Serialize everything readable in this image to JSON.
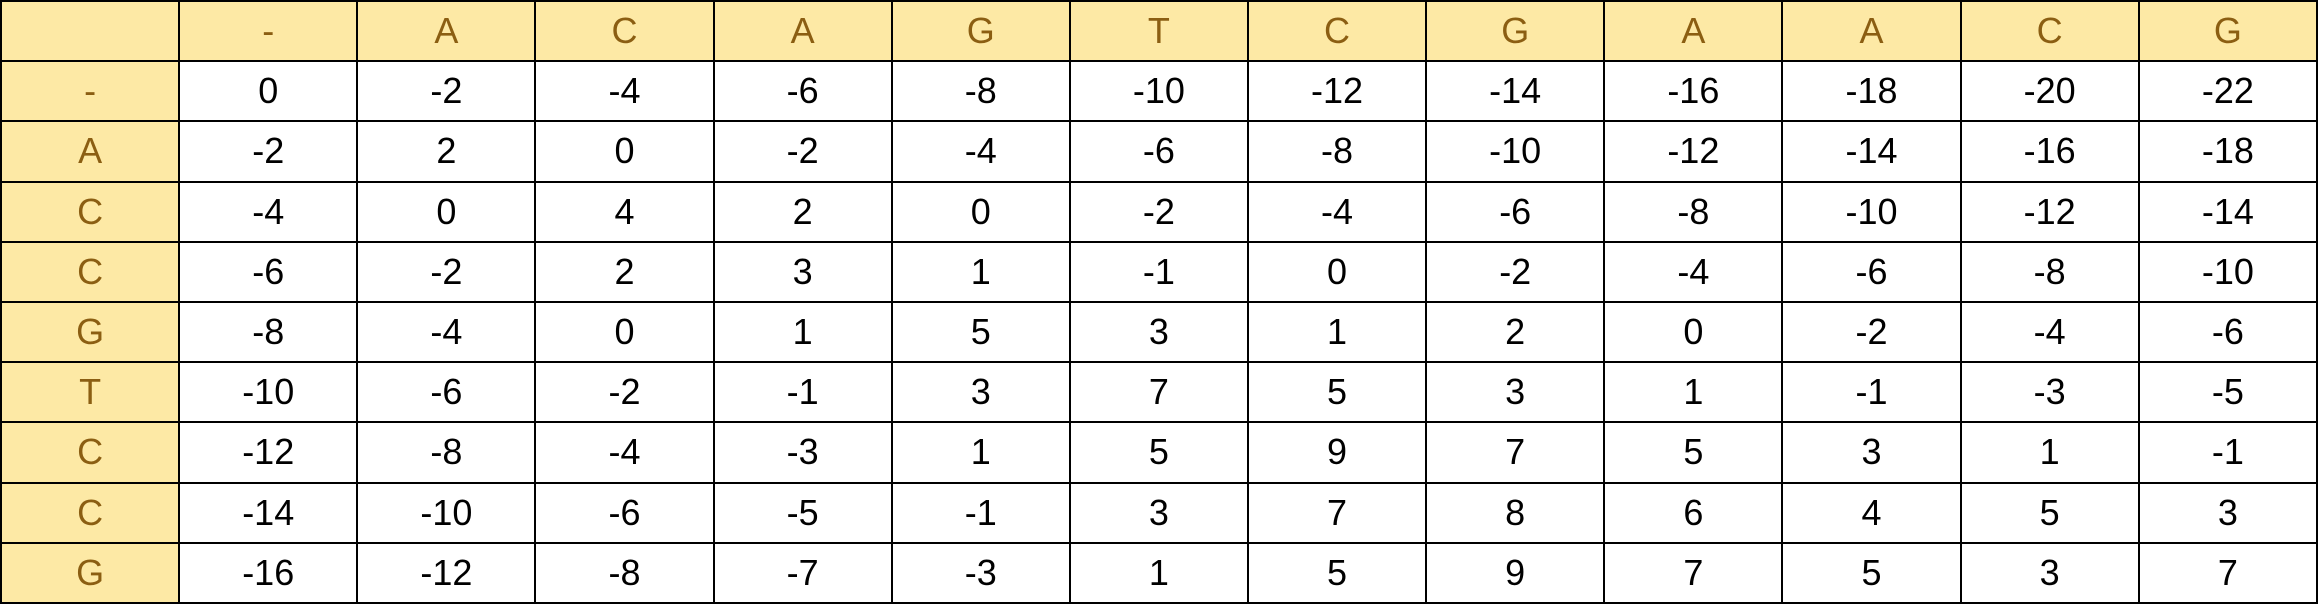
{
  "matrix": {
    "corner": "",
    "column_headers": [
      "-",
      "A",
      "C",
      "A",
      "G",
      "T",
      "C",
      "G",
      "A",
      "A",
      "C",
      "G"
    ],
    "row_headers": [
      "-",
      "A",
      "C",
      "C",
      "G",
      "T",
      "C",
      "C",
      "G"
    ],
    "rows": [
      [
        "0",
        "-2",
        "-4",
        "-6",
        "-8",
        "-10",
        "-12",
        "-14",
        "-16",
        "-18",
        "-20",
        "-22"
      ],
      [
        "-2",
        "2",
        "0",
        "-2",
        "-4",
        "-6",
        "-8",
        "-10",
        "-12",
        "-14",
        "-16",
        "-18"
      ],
      [
        "-4",
        "0",
        "4",
        "2",
        "0",
        "-2",
        "-4",
        "-6",
        "-8",
        "-10",
        "-12",
        "-14"
      ],
      [
        "-6",
        "-2",
        "2",
        "3",
        "1",
        "-1",
        "0",
        "-2",
        "-4",
        "-6",
        "-8",
        "-10"
      ],
      [
        "-8",
        "-4",
        "0",
        "1",
        "5",
        "3",
        "1",
        "2",
        "0",
        "-2",
        "-4",
        "-6"
      ],
      [
        "-10",
        "-6",
        "-2",
        "-1",
        "3",
        "7",
        "5",
        "3",
        "1",
        "-1",
        "-3",
        "-5"
      ],
      [
        "-12",
        "-8",
        "-4",
        "-3",
        "1",
        "5",
        "9",
        "7",
        "5",
        "3",
        "1",
        "-1"
      ],
      [
        "-14",
        "-10",
        "-6",
        "-5",
        "-1",
        "3",
        "7",
        "8",
        "6",
        "4",
        "5",
        "3"
      ],
      [
        "-16",
        "-12",
        "-8",
        "-7",
        "-3",
        "1",
        "5",
        "9",
        "7",
        "5",
        "3",
        "7"
      ]
    ]
  },
  "colors": {
    "header_fill": "#fde9a5",
    "header_text": "#8b5e12",
    "cell_text": "#000000",
    "border": "#000000"
  }
}
